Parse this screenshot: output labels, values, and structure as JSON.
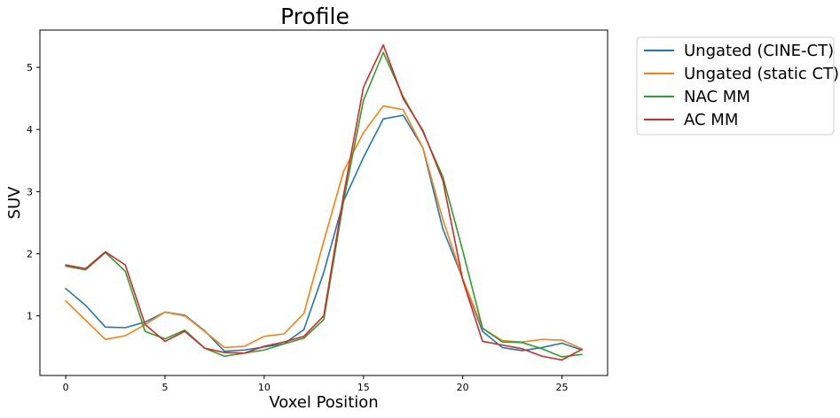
{
  "chart_data": {
    "type": "line",
    "title": "Profile",
    "xlabel": "Voxel Position",
    "ylabel": "SUV",
    "xlim": [
      -1.3,
      27.3
    ],
    "ylim": [
      0.04,
      5.6
    ],
    "xticks": [
      0,
      5,
      10,
      15,
      20,
      25
    ],
    "yticks": [
      1,
      2,
      3,
      4,
      5
    ],
    "grid": false,
    "legend_position": "outside-top-right",
    "x": [
      0,
      1,
      2,
      3,
      4,
      5,
      6,
      7,
      8,
      9,
      10,
      11,
      12,
      13,
      14,
      15,
      16,
      17,
      18,
      19,
      20,
      21,
      22,
      23,
      24,
      25,
      26
    ],
    "series": [
      {
        "name": "Ungated (CINE-CT)",
        "color": "#1f77b4",
        "values": [
          1.44,
          1.17,
          0.82,
          0.81,
          0.9,
          1.06,
          1.01,
          0.76,
          0.43,
          0.45,
          0.5,
          0.55,
          0.78,
          1.7,
          2.85,
          3.55,
          4.17,
          4.23,
          3.7,
          2.4,
          1.6,
          0.75,
          0.49,
          0.44,
          0.49,
          0.56,
          0.45
        ]
      },
      {
        "name": "Ungated (static CT)",
        "color": "#ff7f0e",
        "values": [
          1.24,
          0.93,
          0.62,
          0.68,
          0.86,
          1.06,
          1.0,
          0.75,
          0.49,
          0.51,
          0.67,
          0.71,
          1.04,
          2.2,
          3.33,
          3.95,
          4.38,
          4.32,
          3.7,
          2.55,
          1.6,
          0.8,
          0.6,
          0.58,
          0.62,
          0.61,
          0.47
        ]
      },
      {
        "name": "NAC MM",
        "color": "#2ca02c",
        "values": [
          1.8,
          1.74,
          2.02,
          1.72,
          0.75,
          0.63,
          0.77,
          0.48,
          0.35,
          0.4,
          0.45,
          0.55,
          0.64,
          0.94,
          2.85,
          4.47,
          5.24,
          4.53,
          3.96,
          3.24,
          2.05,
          0.8,
          0.58,
          0.57,
          0.47,
          0.34,
          0.38
        ]
      },
      {
        "name": "AC MM",
        "color": "#d62728",
        "values": [
          1.82,
          1.76,
          2.03,
          1.82,
          0.86,
          0.59,
          0.75,
          0.48,
          0.41,
          0.4,
          0.51,
          0.58,
          0.67,
          1.0,
          2.95,
          4.68,
          5.36,
          4.5,
          3.98,
          3.18,
          1.58,
          0.59,
          0.53,
          0.47,
          0.35,
          0.29,
          0.46
        ]
      }
    ]
  }
}
